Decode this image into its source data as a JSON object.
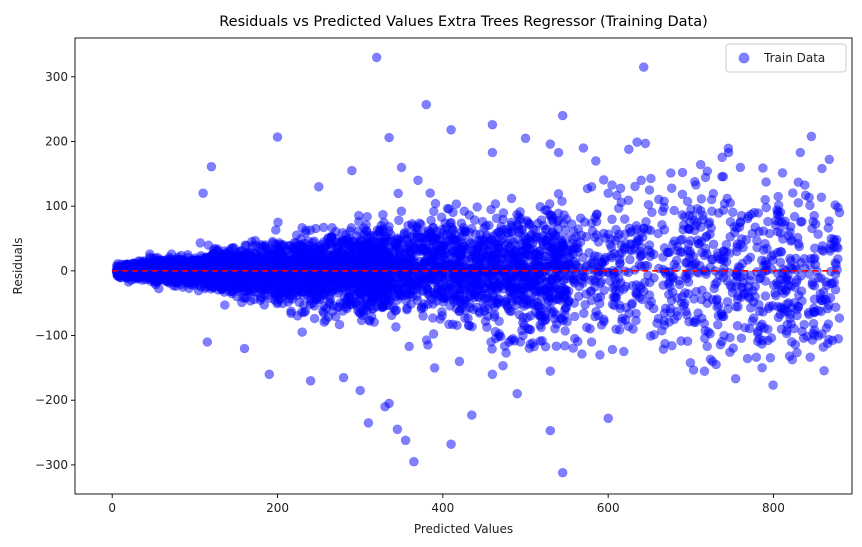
{
  "chart_data": {
    "type": "scatter",
    "title": "Residuals vs Predicted Values Extra Trees Regressor (Training Data)",
    "xlabel": "Predicted Values",
    "ylabel": "Residuals",
    "xlim": [
      -45,
      895
    ],
    "ylim": [
      -345,
      360
    ],
    "xticks": [
      0,
      200,
      400,
      600,
      800
    ],
    "yticks": [
      -300,
      -200,
      -100,
      0,
      100,
      200,
      300
    ],
    "xtick_labels": [
      "0",
      "200",
      "400",
      "600",
      "800"
    ],
    "ytick_labels": [
      "−300",
      "−200",
      "−100",
      "0",
      "100",
      "200",
      "300"
    ],
    "grid": false,
    "legend": {
      "placement": "top-right",
      "entries": [
        "Train Data"
      ]
    },
    "colors": {
      "points": "#0000ff",
      "reference_line": "#ff0000"
    },
    "point_alpha": 0.5,
    "reference_line": {
      "y": 0,
      "x_range": [
        0,
        880
      ],
      "style": "dashed"
    },
    "series": [
      {
        "name": "Train Data",
        "points": [
          [
            320,
            330
          ],
          [
            643,
            315
          ],
          [
            380,
            257
          ],
          [
            545,
            240
          ],
          [
            200,
            207
          ],
          [
            335,
            206
          ],
          [
            410,
            218
          ],
          [
            460,
            226
          ],
          [
            635,
            199
          ],
          [
            645,
            197
          ],
          [
            625,
            188
          ],
          [
            120,
            161
          ],
          [
            500,
            205
          ],
          [
            530,
            196
          ],
          [
            460,
            183
          ],
          [
            540,
            183
          ],
          [
            570,
            190
          ],
          [
            760,
            160
          ],
          [
            290,
            155
          ],
          [
            350,
            160
          ],
          [
            585,
            170
          ],
          [
            720,
            154
          ],
          [
            690,
            152
          ],
          [
            830,
            137
          ],
          [
            370,
            140
          ],
          [
            640,
            140
          ],
          [
            110,
            120
          ],
          [
            250,
            130
          ],
          [
            880,
            90
          ],
          [
            870,
            50
          ],
          [
            850,
            35
          ],
          [
            820,
            60
          ],
          [
            790,
            110
          ],
          [
            760,
            75
          ],
          [
            740,
            30
          ],
          [
            700,
            95
          ],
          [
            680,
            10
          ],
          [
            650,
            40
          ],
          [
            620,
            80
          ],
          [
            600,
            120
          ],
          [
            580,
            130
          ],
          [
            115,
            -110
          ],
          [
            160,
            -120
          ],
          [
            190,
            -160
          ],
          [
            240,
            -170
          ],
          [
            280,
            -165
          ],
          [
            300,
            -185
          ],
          [
            310,
            -235
          ],
          [
            330,
            -210
          ],
          [
            335,
            -205
          ],
          [
            345,
            -245
          ],
          [
            355,
            -262
          ],
          [
            365,
            -295
          ],
          [
            410,
            -268
          ],
          [
            435,
            -223
          ],
          [
            490,
            -190
          ],
          [
            530,
            -247
          ],
          [
            545,
            -312
          ],
          [
            600,
            -228
          ],
          [
            530,
            -155
          ],
          [
            580,
            -110
          ],
          [
            590,
            -130
          ],
          [
            460,
            -160
          ],
          [
            420,
            -140
          ],
          [
            480,
            -110
          ],
          [
            390,
            -150
          ],
          [
            630,
            -90
          ],
          [
            680,
            -75
          ],
          [
            720,
            -50
          ],
          [
            770,
            -40
          ],
          [
            740,
            20
          ],
          [
            810,
            -30
          ],
          [
            850,
            20
          ],
          [
            875,
            -5
          ]
        ]
      }
    ]
  }
}
